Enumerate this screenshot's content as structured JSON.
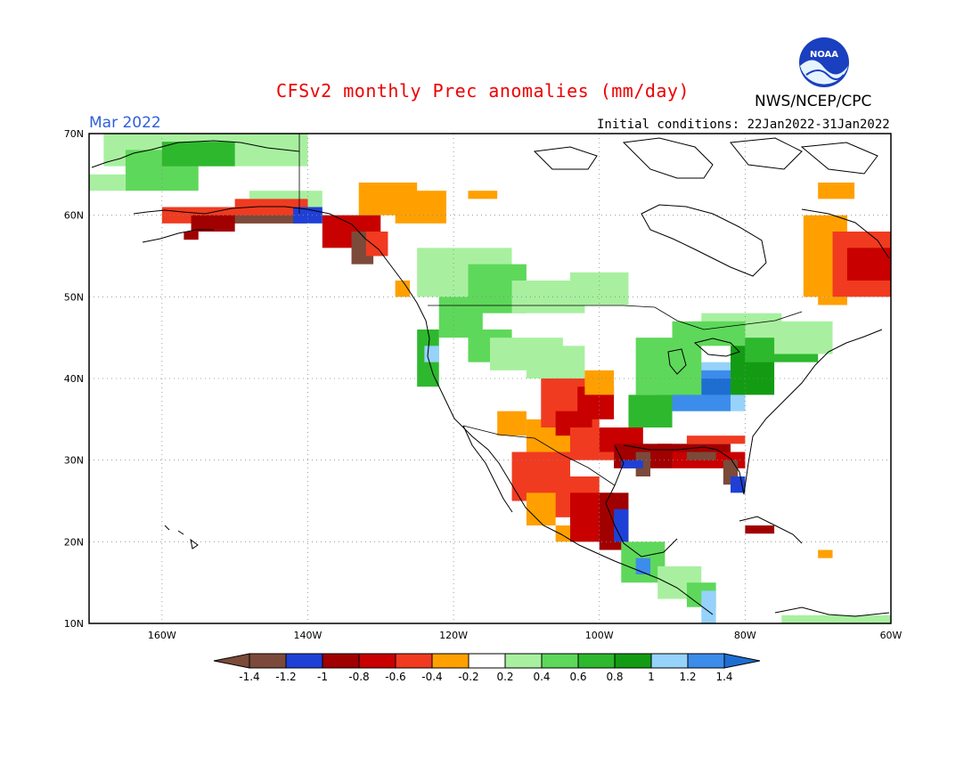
{
  "header": {
    "title": "CFSv2 monthly Prec anomalies (mm/day)",
    "agency": "NWS/NCEP/CPC",
    "month": "Mar 2022",
    "initial_conditions": "Initial conditions: 22Jan2022-31Jan2022",
    "logo_text": "NOAA"
  },
  "colors": {
    "c_m14": "#7b4a3a",
    "c_m12": "#1f40d6",
    "c_m10": "#a00000",
    "c_m08": "#c80000",
    "c_m06": "#f03b20",
    "c_m04": "#ffa000",
    "c_m02": "#ffffff",
    "c_02": "#a8f0a0",
    "c_04": "#5ed85a",
    "c_06": "#2eb82e",
    "c_08": "#139c13",
    "c_10": "#96d2fa",
    "c_12": "#3c8ceb",
    "c_14": "#1e6ed2",
    "land_outline": "#000000",
    "grid": "#888888"
  },
  "chart_data": {
    "type": "heatmap",
    "title": "CFSv2 monthly Prec anomalies (mm/day)",
    "variable": "Precipitation anomaly",
    "units": "mm/day",
    "valid_month": "Mar 2022",
    "initial_conditions": "22Jan2022-31Jan2022",
    "lon_range": [
      -170,
      -60
    ],
    "lat_range": [
      10,
      70
    ],
    "x_ticks": [
      "160W",
      "140W",
      "120W",
      "100W",
      "80W",
      "60W"
    ],
    "y_ticks": [
      "10N",
      "20N",
      "30N",
      "40N",
      "50N",
      "60N",
      "70N"
    ],
    "colorbar": {
      "levels": [
        "-1.4",
        "-1.2",
        "-1",
        "-0.8",
        "-0.6",
        "-0.4",
        "-0.2",
        "0.2",
        "0.4",
        "0.6",
        "0.8",
        "1",
        "1.2",
        "1.4"
      ],
      "colors": [
        "#7b4a3a",
        "#1f40d6",
        "#a00000",
        "#c80000",
        "#f03b20",
        "#ffa000",
        "#ffffff",
        "#a8f0a0",
        "#5ed85a",
        "#2eb82e",
        "#139c13",
        "#96d2fa",
        "#3c8ceb",
        "#1e6ed2"
      ]
    },
    "grid_lines": "dotted"
  },
  "axis": {
    "x_labels": [
      "160W",
      "140W",
      "120W",
      "100W",
      "80W",
      "60W"
    ],
    "y_labels": [
      "70N",
      "60N",
      "50N",
      "40N",
      "30N",
      "20N",
      "10N"
    ]
  }
}
